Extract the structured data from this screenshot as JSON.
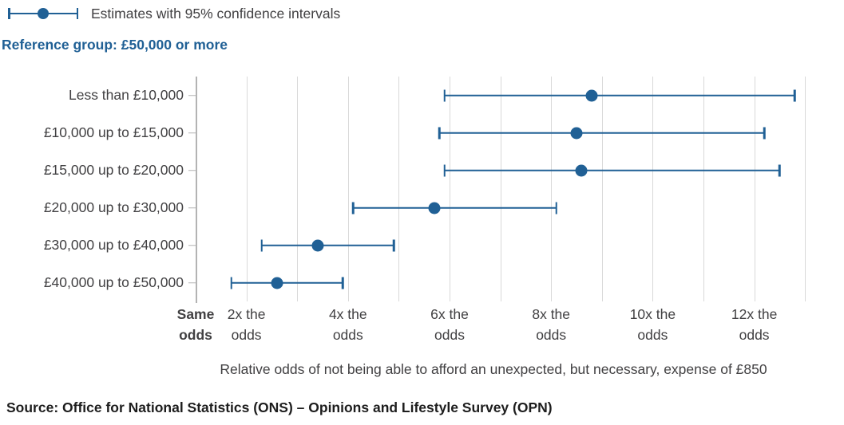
{
  "legend": {
    "label": "Estimates with 95% confidence intervals"
  },
  "reference_note": "Reference group: £50,000 or more",
  "caption": "Relative odds of not being able to afford an unexpected, but necessary, expense of £850",
  "source": "Source: Office for National Statistics (ONS) – Opinions and Lifestyle Survey (OPN)",
  "colors": {
    "accent": "#206095",
    "heading": "#206095",
    "grid": "#d9d9d9",
    "axis": "#b3b3b3",
    "text": "#414042"
  },
  "chart_data": {
    "type": "scatter",
    "subtype": "horizontal dot plot with 95% confidence interval error bars",
    "title": "Estimates with 95% confidence intervals",
    "reference_group": "£50,000 or more",
    "categories": [
      "Less than £10,000",
      "£10,000 up to £15,000",
      "£15,000 up to £20,000",
      "£20,000 up to £30,000",
      "£30,000 up to £40,000",
      "£40,000 up to £50,000"
    ],
    "series": [
      {
        "name": "Relative odds estimate",
        "values": [
          8.8,
          8.5,
          8.6,
          5.7,
          3.4,
          2.6
        ]
      }
    ],
    "ci_lower": [
      5.9,
      5.8,
      5.9,
      4.1,
      2.3,
      1.7
    ],
    "ci_upper": [
      12.8,
      12.2,
      12.5,
      8.1,
      4.9,
      3.9
    ],
    "xlabel": "Relative odds of not being able to afford an unexpected, but necessary, expense of £850",
    "ylabel": "",
    "xlim": [
      1,
      13.5
    ],
    "gridlines": [
      2,
      3,
      4,
      5,
      6,
      7,
      8,
      9,
      10,
      11,
      12,
      13
    ],
    "x_ticks": [
      {
        "value": 1,
        "line1": "Same",
        "line2": "odds",
        "bold": true
      },
      {
        "value": 2,
        "line1": "2x the",
        "line2": "odds"
      },
      {
        "value": 4,
        "line1": "4x the",
        "line2": "odds"
      },
      {
        "value": 6,
        "line1": "6x the",
        "line2": "odds"
      },
      {
        "value": 8,
        "line1": "8x the",
        "line2": "odds"
      },
      {
        "value": 10,
        "line1": "10x the",
        "line2": "odds"
      },
      {
        "value": 12,
        "line1": "12x the",
        "line2": "odds"
      }
    ],
    "grid": "vertical gridlines at each 1x step",
    "legend_position": "top-left"
  }
}
